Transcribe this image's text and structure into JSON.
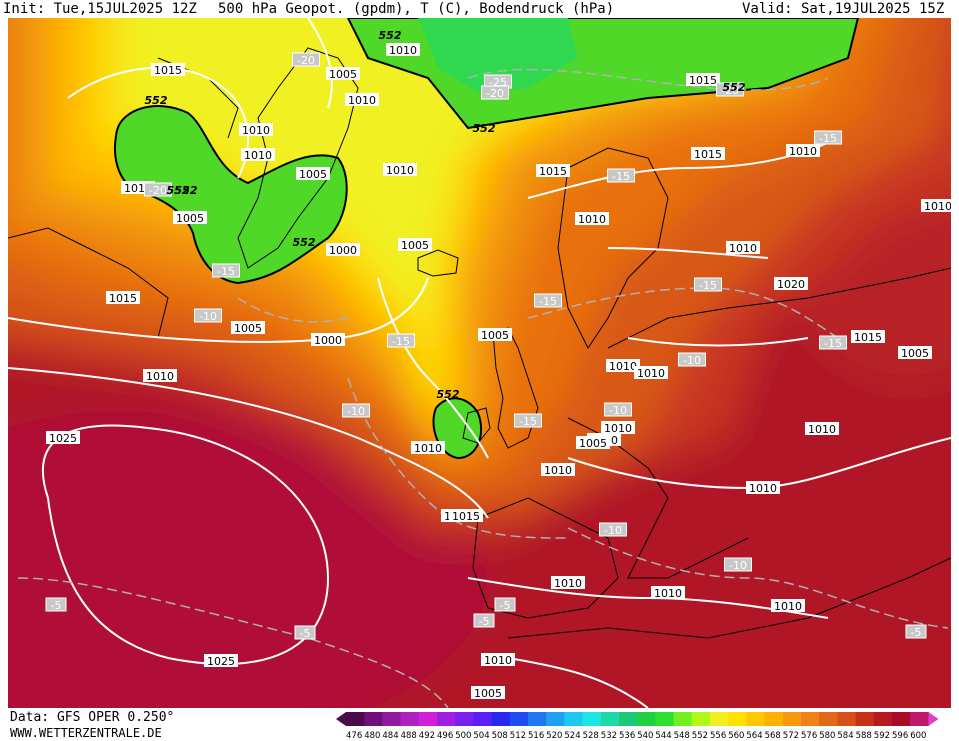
{
  "header": {
    "init": "Init: Tue,15JUL2025 12Z",
    "title": "500 hPa Geopot. (gpdm), T (C), Bodendruck (hPa)",
    "valid": "Valid: Sat,19JUL2025 15Z"
  },
  "footer": {
    "source": "Data: GFS OPER 0.250°",
    "site": "WWW.WETTERZENTRALE.DE"
  },
  "legend": {
    "values": [
      "476",
      "480",
      "484",
      "488",
      "492",
      "496",
      "500",
      "504",
      "508",
      "512",
      "516",
      "520",
      "524",
      "528",
      "532",
      "536",
      "540",
      "544",
      "548",
      "552",
      "556",
      "560",
      "564",
      "568",
      "572",
      "576",
      "580",
      "584",
      "588",
      "592",
      "596",
      "600"
    ],
    "colors": [
      "#4b0a4b",
      "#6e0f7a",
      "#8f1aa0",
      "#b21fc0",
      "#d41fd8",
      "#a31fe0",
      "#7a1ff0",
      "#5a1ff5",
      "#2a28f0",
      "#1f4cf0",
      "#1f78f0",
      "#1fa0f0",
      "#1fc8f0",
      "#1fe6e6",
      "#1fd8a8",
      "#1fc878",
      "#1fd040",
      "#30e030",
      "#70f020",
      "#b0f81a",
      "#f0f020",
      "#ffe000",
      "#ffc800",
      "#ffb000",
      "#f89810",
      "#f08018",
      "#e06818",
      "#d85018",
      "#c83018",
      "#b81820",
      "#a80a28",
      "#c0186a"
    ],
    "end_color": "#e040c0"
  },
  "map": {
    "isobars": [
      "1015",
      "1010",
      "1010",
      "1005",
      "1000",
      "1010",
      "1015",
      "1010",
      "1005",
      "1005",
      "1010",
      "1005",
      "1005",
      "1000",
      "1015",
      "1010",
      "1010",
      "1015",
      "1010",
      "1020",
      "1015",
      "1010",
      "1010",
      "1010",
      "1005",
      "1010",
      "1010",
      "1015",
      "1010",
      "1010",
      "1010",
      "1005",
      "1025",
      "1025",
      "1010",
      "1010",
      "1010",
      "1005",
      "1015",
      "1010",
      "1015",
      "1005",
      "1010",
      "1010",
      "1010"
    ],
    "temps": [
      "-20",
      "-20",
      "-25",
      "-20",
      "-20",
      "-15",
      "-10",
      "-15",
      "-10",
      "-15",
      "-15",
      "-15",
      "-15",
      "-10",
      "-10",
      "-10",
      "-10",
      "-5",
      "-5",
      "-5",
      "-5",
      "-5",
      "-15",
      "-15"
    ],
    "gpdm": [
      "552",
      "552",
      "552",
      "552",
      "552",
      "552",
      "552",
      "552"
    ]
  }
}
